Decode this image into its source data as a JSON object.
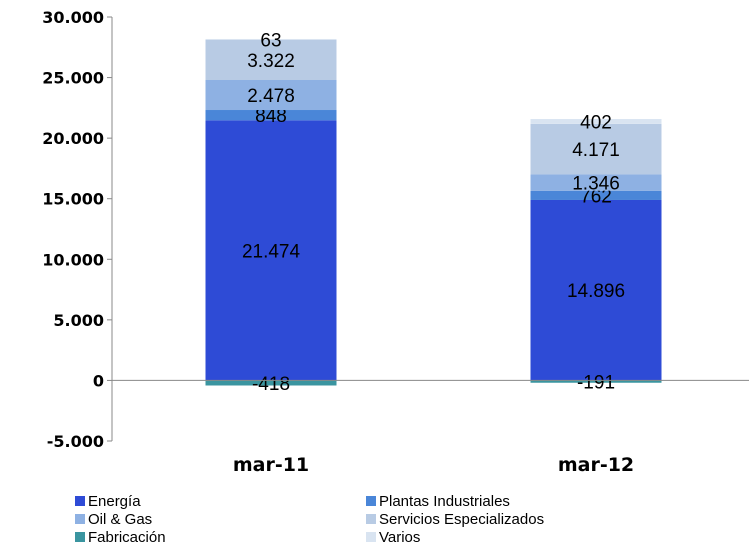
{
  "chart_data": {
    "type": "bar",
    "stacked": true,
    "categories": [
      "mar-11",
      "mar-12"
    ],
    "series": [
      {
        "name": "Energía",
        "color": "#2e4bd6",
        "values": [
          21474,
          14896
        ],
        "labels": [
          "21.474",
          "14.896"
        ]
      },
      {
        "name": "Plantas Industriales",
        "color": "#4a86d8",
        "values": [
          848,
          762
        ],
        "labels": [
          "848",
          "762"
        ]
      },
      {
        "name": "Oil & Gas",
        "color": "#8eb1e3",
        "values": [
          2478,
          1346
        ],
        "labels": [
          "2.478",
          "1.346"
        ]
      },
      {
        "name": "Servicios Especializados",
        "color": "#b8cbe4",
        "values": [
          3322,
          4171
        ],
        "labels": [
          "3.322",
          "4.171"
        ]
      },
      {
        "name": "Fabricación",
        "color": "#3a95a0",
        "values": [
          -418,
          -191
        ],
        "labels": [
          "-418",
          "-191"
        ]
      },
      {
        "name": "Varios",
        "color": "#d9e4f1",
        "values": [
          63,
          402
        ],
        "labels": [
          "63",
          "402"
        ]
      }
    ],
    "yticks": [
      {
        "value": 30000,
        "label": "30.000"
      },
      {
        "value": 25000,
        "label": "25.000"
      },
      {
        "value": 20000,
        "label": "20.000"
      },
      {
        "value": 15000,
        "label": "15.000"
      },
      {
        "value": 10000,
        "label": "10.000"
      },
      {
        "value": 5000,
        "label": "5.000"
      },
      {
        "value": 0,
        "label": "0"
      },
      {
        "value": -5000,
        "label": "-5.000"
      }
    ],
    "ylim": [
      -5000,
      30000
    ],
    "grid": false,
    "legend_position": "bottom",
    "title": "",
    "xlabel": "",
    "ylabel": ""
  }
}
